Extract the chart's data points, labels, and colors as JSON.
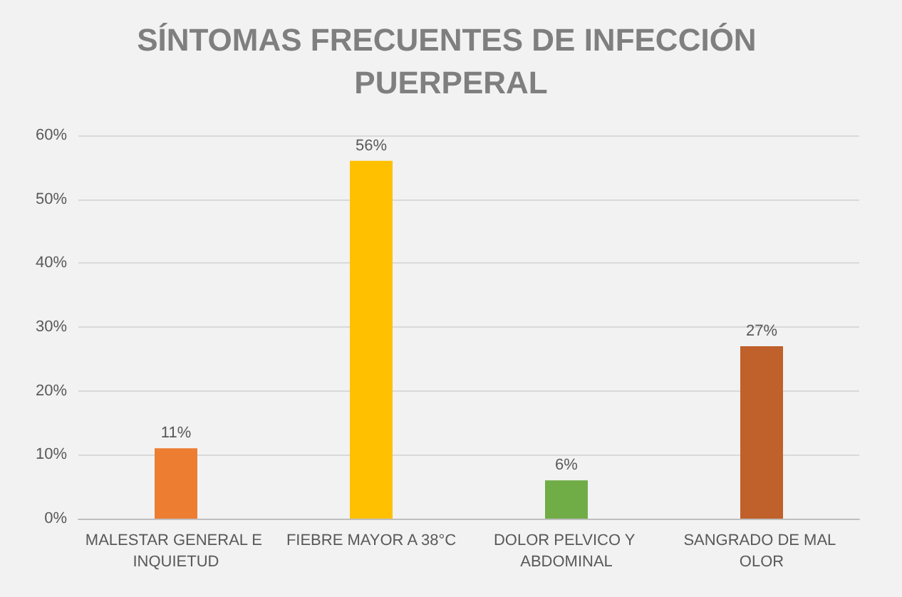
{
  "chart_data": {
    "type": "bar",
    "title": "SÍNTOMAS FRECUENTES DE INFECCIÓN PUERPERAL",
    "categories": [
      "MALESTAR GENERAL E INQUIETUD",
      "FIEBRE MAYOR A 38°C",
      "DOLOR PELVICO Y ABDOMINAL",
      "SANGRADO DE MAL OLOR"
    ],
    "values": [
      11,
      56,
      6,
      27
    ],
    "colors": [
      "#ed7d31",
      "#ffc000",
      "#70ad47",
      "#c0602a"
    ],
    "value_labels": [
      "11%",
      "56%",
      "6%",
      "27%"
    ],
    "ylim": [
      0,
      60
    ],
    "yticks": [
      {
        "value": 0,
        "label": "0%"
      },
      {
        "value": 10,
        "label": "10%"
      },
      {
        "value": 20,
        "label": "20%"
      },
      {
        "value": 30,
        "label": "30%"
      },
      {
        "value": 40,
        "label": "40%"
      },
      {
        "value": 50,
        "label": "50%"
      },
      {
        "value": 60,
        "label": "60%"
      }
    ],
    "grid": "y",
    "legend": false
  }
}
